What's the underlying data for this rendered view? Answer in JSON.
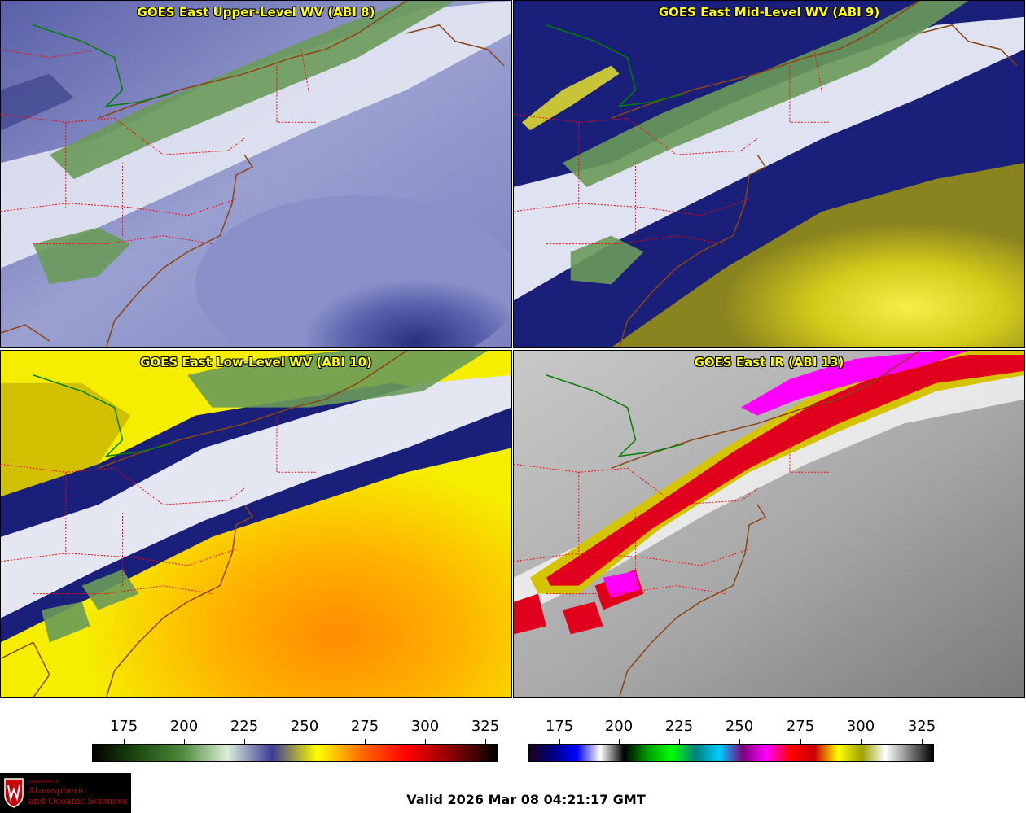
{
  "panels": [
    {
      "title": "GOES East Upper-Level WV (ABI 8)"
    },
    {
      "title": "GOES East Mid-Level WV (ABI 9)"
    },
    {
      "title": "GOES East Low-Level WV (ABI 10)"
    },
    {
      "title": "GOES East IR (ABI 13)"
    }
  ],
  "colorbar_wv": {
    "ticks": [
      "175",
      "200",
      "225",
      "250",
      "275",
      "300",
      "325"
    ],
    "colors": [
      "#000000",
      "#1e4a10",
      "#4c8a3c",
      "#dcedd7",
      "#3c3c96",
      "#ffff00",
      "#ff6a00",
      "#ff0000",
      "#8b0000",
      "#000000"
    ]
  },
  "colorbar_ir": {
    "ticks": [
      "175",
      "200",
      "225",
      "250",
      "275",
      "300",
      "325"
    ],
    "colors": [
      "#1a001a",
      "#000080",
      "#0000ff",
      "#ffffff",
      "#000000",
      "#00a000",
      "#00ff00",
      "#008080",
      "#00ccff",
      "#800080",
      "#ff00ff",
      "#ff0000",
      "#c80000",
      "#ffff00",
      "#a0a000",
      "#ffffff",
      "#808080",
      "#000000"
    ]
  },
  "footer": {
    "logo_dept": "Department of",
    "logo_line1": "Atmospheric",
    "logo_line2": "and Oceanic Sciences",
    "valid_time": "Valid 2026 Mar 08 04:21:17 GMT"
  }
}
